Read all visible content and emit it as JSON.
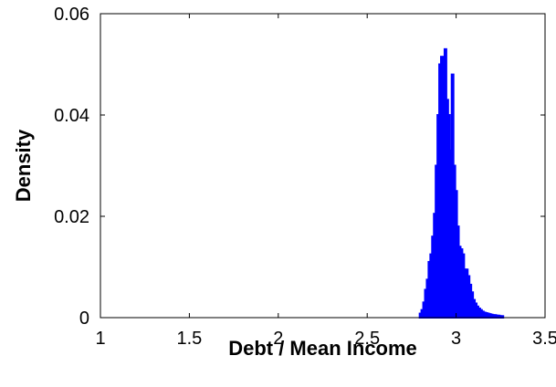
{
  "chart_data": {
    "type": "bar",
    "title": "",
    "xlabel": "Debt / Mean Income",
    "ylabel": "Density",
    "xlim": [
      1,
      3.5
    ],
    "ylim": [
      0,
      0.06
    ],
    "grid": false,
    "legend": "none",
    "bar_color": "#0000ff",
    "x_ticks": [
      {
        "value": 1,
        "label": "1"
      },
      {
        "value": 1.5,
        "label": "1.5"
      },
      {
        "value": 2,
        "label": "2"
      },
      {
        "value": 2.5,
        "label": "2.5"
      },
      {
        "value": 3,
        "label": "3"
      },
      {
        "value": 3.5,
        "label": "3.5"
      }
    ],
    "y_ticks": [
      {
        "value": 0,
        "label": "0"
      },
      {
        "value": 0.02,
        "label": "0.02"
      },
      {
        "value": 0.04,
        "label": "0.04"
      },
      {
        "value": 0.06,
        "label": "0.06"
      }
    ],
    "x": [
      2.8,
      2.81,
      2.82,
      2.83,
      2.84,
      2.85,
      2.86,
      2.87,
      2.88,
      2.89,
      2.9,
      2.91,
      2.92,
      2.93,
      2.94,
      2.95,
      2.96,
      2.97,
      2.98,
      2.99,
      3.0,
      3.01,
      3.02,
      3.03,
      3.04,
      3.05,
      3.06,
      3.07,
      3.08,
      3.09,
      3.1,
      3.11,
      3.12,
      3.13,
      3.14,
      3.15,
      3.16,
      3.17,
      3.18,
      3.19,
      3.2,
      3.21,
      3.22,
      3.23,
      3.24,
      3.25,
      3.26
    ],
    "values": [
      0.0008,
      0.0015,
      0.003,
      0.0055,
      0.0075,
      0.011,
      0.0125,
      0.016,
      0.0205,
      0.03,
      0.04,
      0.05,
      0.0515,
      0.047,
      0.053,
      0.043,
      0.04,
      0.033,
      0.048,
      0.03,
      0.025,
      0.018,
      0.014,
      0.0135,
      0.0125,
      0.0095,
      0.0095,
      0.0082,
      0.0065,
      0.005,
      0.0035,
      0.0028,
      0.0022,
      0.0018,
      0.0015,
      0.0012,
      0.001,
      0.0009,
      0.0008,
      0.0007,
      0.0006,
      0.0005,
      0.0005,
      0.0004,
      0.0004,
      0.0003,
      0.0003
    ]
  }
}
